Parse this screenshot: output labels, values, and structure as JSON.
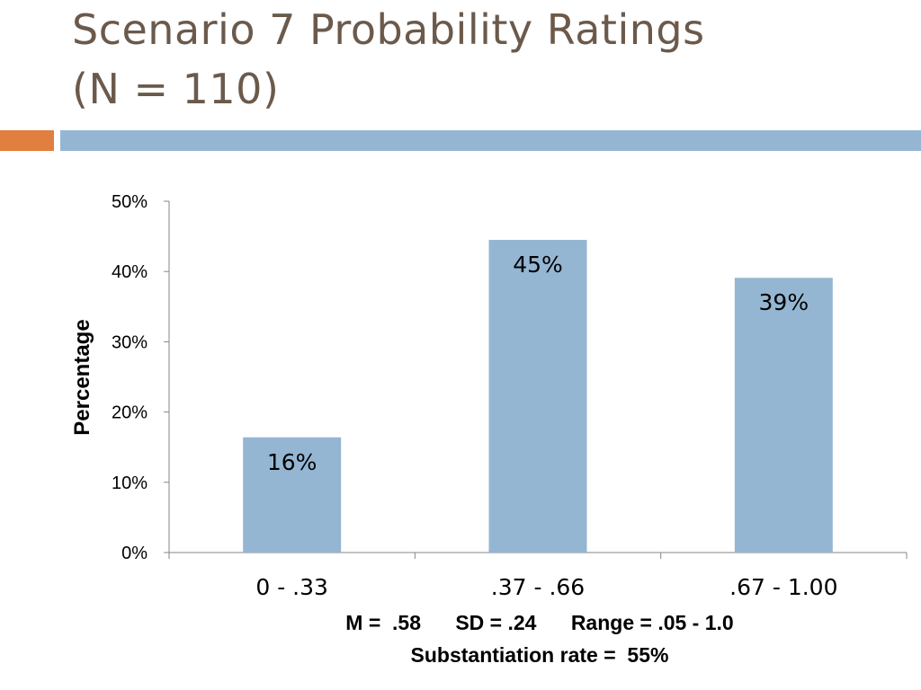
{
  "slide": {
    "title_line1": "Scenario 7 Probability Ratings",
    "title_line2": "(N = 110)",
    "stats_line": "M =  .58      SD = .24      Range = .05 - 1.0",
    "rate_line": "Substantiation rate =  55%"
  },
  "colors": {
    "bar": "#94b6d2",
    "title": "#6b5a4c",
    "accent_orange": "#e07f40",
    "accent_blue": "#94b6d2"
  },
  "chart_data": {
    "type": "bar",
    "categories": [
      "0 - .33",
      ".37 - .66",
      ".67 - 1.00"
    ],
    "values": [
      16.4,
      44.5,
      39.1
    ],
    "data_labels": [
      "16%",
      "45%",
      "39%"
    ],
    "ylabel": "Percentage",
    "xlabel": "",
    "ylim": [
      0,
      50
    ],
    "yticks": [
      0,
      10,
      20,
      30,
      40,
      50
    ],
    "ytick_labels": [
      "0%",
      "10%",
      "20%",
      "30%",
      "40%",
      "50%"
    ],
    "grid": false,
    "legend": "none"
  }
}
